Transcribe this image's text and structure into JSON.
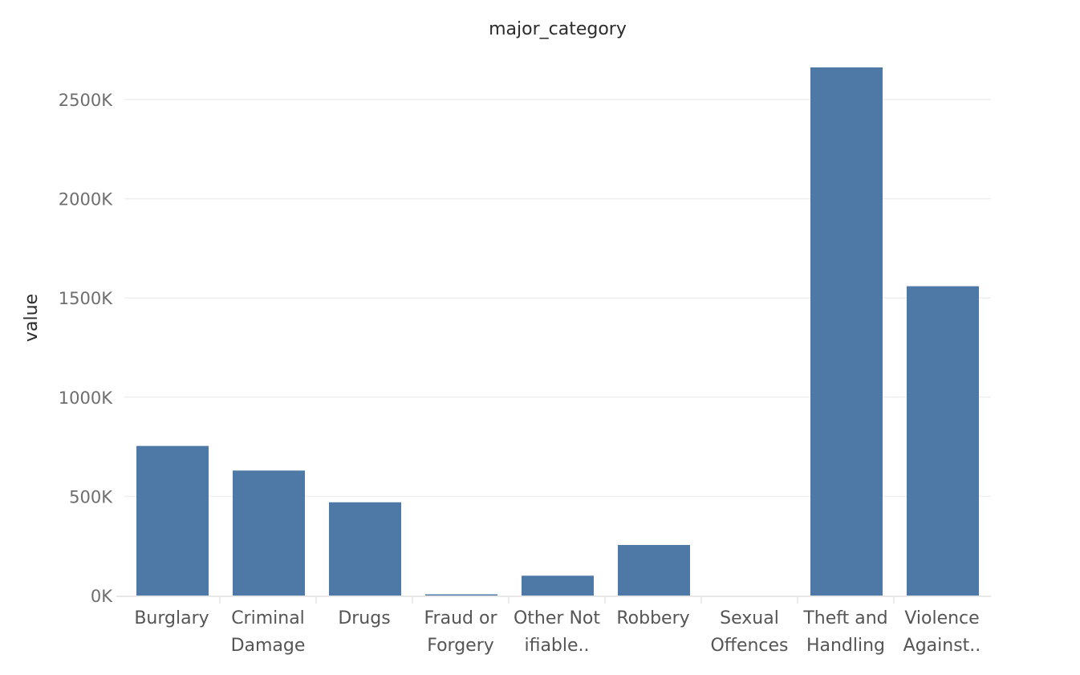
{
  "chart_data": {
    "type": "bar",
    "title": "major_category",
    "xlabel": "",
    "ylabel": "value",
    "categories": [
      [
        "Burglary"
      ],
      [
        "Criminal",
        "Damage"
      ],
      [
        "Drugs"
      ],
      [
        "Fraud or",
        "Forgery"
      ],
      [
        "Other Not",
        "ifiable.."
      ],
      [
        "Robbery"
      ],
      [
        "Sexual",
        "Offences"
      ],
      [
        "Theft and",
        "Handling"
      ],
      [
        "Violence",
        "Against.."
      ]
    ],
    "values": [
      754000,
      630000,
      470000,
      6000,
      100000,
      255000,
      0,
      2662000,
      1559000
    ],
    "ylim": [
      0,
      2750000
    ],
    "yticks": [
      {
        "value": 0,
        "label": "0K"
      },
      {
        "value": 500000,
        "label": "500K"
      },
      {
        "value": 1000000,
        "label": "1000K"
      },
      {
        "value": 1500000,
        "label": "1500K"
      },
      {
        "value": 2000000,
        "label": "2000K"
      },
      {
        "value": 2500000,
        "label": "2500K"
      }
    ],
    "grid": true,
    "bar_color": "#4e79a7"
  }
}
